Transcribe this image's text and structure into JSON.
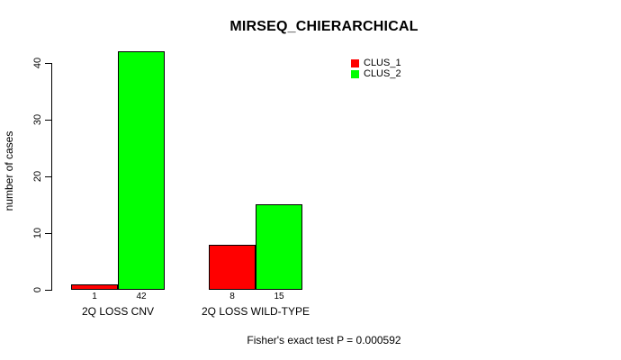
{
  "chart_data": {
    "type": "bar",
    "title": "MIRSEQ_CHIERARCHICAL",
    "ylabel": "number of cases",
    "xlabel": "",
    "categories": [
      "2Q LOSS CNV",
      "2Q LOSS WILD-TYPE"
    ],
    "series": [
      {
        "name": "CLUS_1",
        "color": "#ff0000",
        "values": [
          1,
          8
        ]
      },
      {
        "name": "CLUS_2",
        "color": "#00ff00",
        "values": [
          42,
          15
        ]
      }
    ],
    "bar_value_labels": [
      [
        "1",
        "42"
      ],
      [
        "8",
        "15"
      ]
    ],
    "yticks": [
      0,
      10,
      20,
      30,
      40
    ],
    "ylim": [
      0,
      42
    ],
    "grid": false,
    "legend_position": "top-right",
    "annotation": "Fisher's exact test P = 0.000592"
  }
}
